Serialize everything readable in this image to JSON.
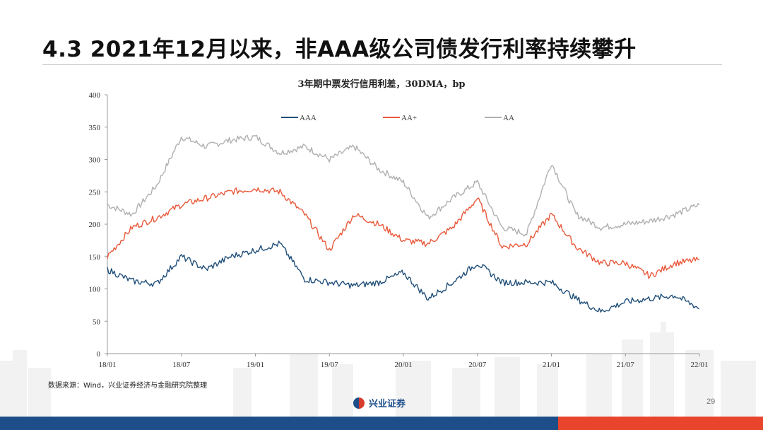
{
  "slide": {
    "title": "4.3 2021年12月以来，非AAA级公司债发行利率持续攀升",
    "source": "数据来源：Wind，兴业证券经济与金融研究院整理",
    "brand": "兴业证券",
    "page_number": "29",
    "colors": {
      "bottom_bar_left": "#1d4e8a",
      "bottom_bar_right": "#e8452c"
    }
  },
  "chart_data": {
    "type": "line",
    "title": "3年期中票发行信用利差，30DMA，bp",
    "xlabel": "",
    "ylabel": "",
    "ylim": [
      0,
      400
    ],
    "yticks": [
      0,
      50,
      100,
      150,
      200,
      250,
      300,
      350,
      400
    ],
    "xticks": [
      "18/01",
      "18/07",
      "19/01",
      "19/07",
      "20/01",
      "20/07",
      "21/01",
      "21/07",
      "22/01"
    ],
    "legend_position": "top-center",
    "grid": false,
    "x": [
      "18/01",
      "18/03",
      "18/05",
      "18/07",
      "18/09",
      "18/11",
      "19/01",
      "19/03",
      "19/05",
      "19/07",
      "19/09",
      "19/11",
      "20/01",
      "20/03",
      "20/05",
      "20/07",
      "20/09",
      "20/11",
      "21/01",
      "21/03",
      "21/05",
      "21/07",
      "21/09",
      "21/11",
      "22/01"
    ],
    "series": [
      {
        "name": "AAA",
        "color": "#1f4e79",
        "values": [
          130,
          112,
          108,
          150,
          130,
          150,
          160,
          170,
          115,
          110,
          105,
          110,
          125,
          85,
          110,
          140,
          110,
          110,
          110,
          85,
          65,
          80,
          85,
          90,
          70
        ]
      },
      {
        "name": "AA+",
        "color": "#e8593a",
        "values": [
          150,
          195,
          210,
          230,
          240,
          250,
          255,
          250,
          215,
          160,
          215,
          200,
          175,
          170,
          195,
          240,
          165,
          170,
          215,
          165,
          140,
          140,
          120,
          140,
          145
        ]
      },
      {
        "name": "AA",
        "color": "#b0b0b0",
        "values": [
          230,
          215,
          260,
          335,
          320,
          330,
          335,
          310,
          320,
          300,
          320,
          285,
          265,
          210,
          240,
          265,
          195,
          185,
          295,
          215,
          195,
          200,
          205,
          215,
          230
        ]
      }
    ]
  }
}
